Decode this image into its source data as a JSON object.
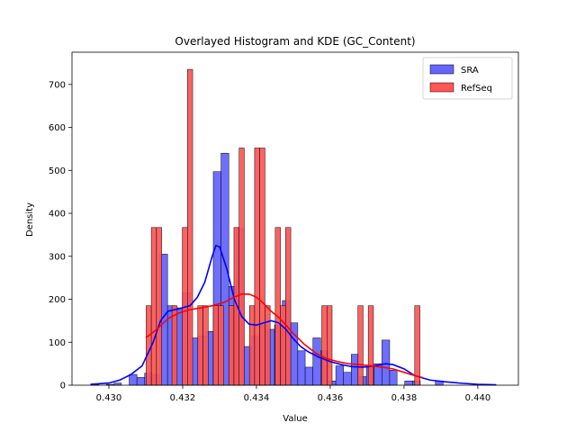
{
  "chart_data": {
    "type": "histogram+kde",
    "title": "Overlayed Histogram and KDE (GC_Content)",
    "xlabel": "Value",
    "ylabel": "Density",
    "xlim": [
      0.429,
      0.4411
    ],
    "ylim": [
      0,
      775
    ],
    "xticks": [
      0.43,
      0.432,
      0.434,
      0.436,
      0.438,
      0.44
    ],
    "xtick_labels": [
      "0.430",
      "0.432",
      "0.434",
      "0.436",
      "0.438",
      "0.440"
    ],
    "yticks": [
      0,
      100,
      200,
      300,
      400,
      500,
      600,
      700
    ],
    "ytick_labels": [
      "0",
      "100",
      "200",
      "300",
      "400",
      "500",
      "600",
      "700"
    ],
    "grid": false,
    "legend_position": "upper-right",
    "series": [
      {
        "name": "SRA",
        "color": "#0000ff",
        "bar_color": "#6666ff",
        "kde_color": "#0000ff",
        "bins": [
          [
            0.42951,
            0.42972,
            2
          ],
          [
            0.42972,
            0.42993,
            0
          ],
          [
            0.42993,
            0.43014,
            2
          ],
          [
            0.43014,
            0.43034,
            5
          ],
          [
            0.43034,
            0.43055,
            0
          ],
          [
            0.43055,
            0.43076,
            25
          ],
          [
            0.43076,
            0.43097,
            18
          ],
          [
            0.43097,
            0.43117,
            28
          ],
          [
            0.43117,
            0.43138,
            25
          ],
          [
            0.43138,
            0.43159,
            305
          ],
          [
            0.43159,
            0.4318,
            185
          ],
          [
            0.4318,
            0.432,
            180
          ],
          [
            0.432,
            0.43221,
            215
          ],
          [
            0.43221,
            0.43242,
            110
          ],
          [
            0.43242,
            0.43263,
            115
          ],
          [
            0.43263,
            0.43283,
            125
          ],
          [
            0.43283,
            0.43304,
            497
          ],
          [
            0.43304,
            0.43325,
            540
          ],
          [
            0.43325,
            0.43346,
            230
          ],
          [
            0.43346,
            0.43366,
            365
          ],
          [
            0.43366,
            0.43387,
            90
          ],
          [
            0.43387,
            0.43408,
            115
          ],
          [
            0.43408,
            0.43429,
            140
          ],
          [
            0.43429,
            0.43449,
            130
          ],
          [
            0.43449,
            0.4347,
            140
          ],
          [
            0.4347,
            0.43491,
            197
          ],
          [
            0.43491,
            0.43512,
            145
          ],
          [
            0.43512,
            0.43532,
            80
          ],
          [
            0.43532,
            0.43553,
            42
          ],
          [
            0.43553,
            0.43574,
            110
          ],
          [
            0.43574,
            0.43595,
            80
          ],
          [
            0.43595,
            0.43615,
            10
          ],
          [
            0.43615,
            0.43636,
            45
          ],
          [
            0.43636,
            0.43657,
            30
          ],
          [
            0.43657,
            0.43678,
            72
          ],
          [
            0.43678,
            0.43698,
            20
          ],
          [
            0.43698,
            0.43719,
            42
          ],
          [
            0.43719,
            0.4374,
            50
          ],
          [
            0.4374,
            0.43761,
            105
          ],
          [
            0.43761,
            0.43781,
            35
          ],
          [
            0.43781,
            0.43802,
            0
          ],
          [
            0.43802,
            0.43823,
            10
          ],
          [
            0.43823,
            0.43844,
            10
          ],
          [
            0.43844,
            0.43864,
            0
          ],
          [
            0.43864,
            0.43885,
            0
          ],
          [
            0.43885,
            0.43906,
            10
          ],
          [
            0.43906,
            0.43927,
            0
          ],
          [
            0.43927,
            0.43947,
            0
          ],
          [
            0.43947,
            0.43968,
            0
          ],
          [
            0.43968,
            0.43989,
            0
          ],
          [
            0.43989,
            0.4401,
            0
          ],
          [
            0.4401,
            0.4403,
            0
          ],
          [
            0.4403,
            0.44051,
            0
          ]
        ],
        "kde": [
          [
            0.4295,
            2
          ],
          [
            0.43,
            5
          ],
          [
            0.4303,
            12
          ],
          [
            0.4306,
            25
          ],
          [
            0.4309,
            45
          ],
          [
            0.4312,
            100
          ],
          [
            0.4314,
            150
          ],
          [
            0.4316,
            172
          ],
          [
            0.4319,
            178
          ],
          [
            0.4322,
            185
          ],
          [
            0.4324,
            205
          ],
          [
            0.4326,
            240
          ],
          [
            0.4328,
            300
          ],
          [
            0.4329,
            325
          ],
          [
            0.433,
            322
          ],
          [
            0.4332,
            270
          ],
          [
            0.4334,
            200
          ],
          [
            0.4336,
            160
          ],
          [
            0.4338,
            142
          ],
          [
            0.434,
            140
          ],
          [
            0.4342,
            145
          ],
          [
            0.4344,
            150
          ],
          [
            0.4346,
            145
          ],
          [
            0.4348,
            130
          ],
          [
            0.435,
            108
          ],
          [
            0.4352,
            90
          ],
          [
            0.4354,
            78
          ],
          [
            0.4357,
            65
          ],
          [
            0.436,
            55
          ],
          [
            0.4363,
            48
          ],
          [
            0.4366,
            43
          ],
          [
            0.4369,
            42
          ],
          [
            0.4372,
            45
          ],
          [
            0.4375,
            50
          ],
          [
            0.4377,
            48
          ],
          [
            0.438,
            38
          ],
          [
            0.4383,
            22
          ],
          [
            0.4387,
            12
          ],
          [
            0.4391,
            8
          ],
          [
            0.4395,
            5
          ],
          [
            0.44,
            2
          ],
          [
            0.4405,
            1
          ]
        ]
      },
      {
        "name": "RefSeq",
        "color": "#ff0000",
        "bar_color": "#ff5555",
        "kde_color": "#ff0000",
        "bins": [
          [
            0.43101,
            0.43124,
            185
          ],
          [
            0.43124,
            0.43147,
            367
          ],
          [
            0.43147,
            0.4317,
            367
          ],
          [
            0.4317,
            0.43193,
            0
          ],
          [
            0.43193,
            0.43216,
            0
          ],
          [
            0.43216,
            0.43239,
            0
          ],
          [
            0.43239,
            0.43262,
            0
          ],
          [
            0.43262,
            0.43285,
            0
          ],
          [
            0.43285,
            0.43308,
            0
          ],
          [
            0.43308,
            0.43331,
            0
          ],
          [
            0.43331,
            0.43354,
            0
          ],
          [
            0.43354,
            0.43377,
            0
          ],
          [
            0.43377,
            0.434,
            0
          ],
          [
            0.434,
            0.43423,
            0
          ],
          [
            0.43423,
            0.43446,
            0
          ],
          [
            0.43446,
            0.43469,
            0
          ],
          [
            0.43469,
            0.43492,
            0
          ],
          [
            0.43492,
            0.43515,
            0
          ],
          [
            0.43515,
            0.43538,
            0
          ],
          [
            0.43538,
            0.43561,
            0
          ],
          [
            0.43561,
            0.43584,
            0
          ],
          [
            0.43584,
            0.43607,
            0
          ],
          [
            0.43607,
            0.4363,
            0
          ],
          [
            0.4363,
            0.43653,
            0
          ],
          [
            0.43653,
            0.43676,
            0
          ],
          [
            0.43676,
            0.43699,
            0
          ],
          [
            0.43699,
            0.43722,
            0
          ],
          [
            0.43722,
            0.43745,
            0
          ],
          [
            0.43745,
            0.43768,
            0
          ],
          [
            0.43768,
            0.43791,
            0
          ],
          [
            0.43791,
            0.43814,
            0
          ],
          [
            0.43814,
            0.43837,
            0
          ],
          [
            0.43837,
            0.4386,
            0
          ]
        ],
        "bars": [
          [
            0.43101,
            0.43115,
            185
          ],
          [
            0.43115,
            0.43129,
            367
          ],
          [
            0.43129,
            0.43143,
            367
          ],
          [
            0.43143,
            0.43157,
            0
          ],
          [
            0.43157,
            0.43171,
            0
          ],
          [
            0.43171,
            0.43185,
            185
          ],
          [
            0.43185,
            0.43199,
            0
          ],
          [
            0.43199,
            0.43213,
            367
          ],
          [
            0.43213,
            0.43227,
            735
          ],
          [
            0.43227,
            0.43241,
            0
          ],
          [
            0.43241,
            0.43255,
            185
          ],
          [
            0.43255,
            0.43269,
            185
          ],
          [
            0.43269,
            0.43283,
            0
          ],
          [
            0.43283,
            0.43297,
            185
          ],
          [
            0.43297,
            0.43311,
            185
          ],
          [
            0.43311,
            0.43325,
            0
          ],
          [
            0.43325,
            0.43339,
            185
          ],
          [
            0.43339,
            0.43353,
            367
          ],
          [
            0.43353,
            0.43367,
            552
          ],
          [
            0.43367,
            0.43381,
            0
          ],
          [
            0.43381,
            0.43395,
            185
          ],
          [
            0.43395,
            0.43409,
            552
          ],
          [
            0.43409,
            0.43423,
            552
          ],
          [
            0.43423,
            0.43437,
            185
          ],
          [
            0.43437,
            0.43451,
            0
          ],
          [
            0.43451,
            0.43465,
            367
          ],
          [
            0.43465,
            0.43479,
            185
          ],
          [
            0.43479,
            0.43493,
            367
          ],
          [
            0.43493,
            0.43507,
            0
          ],
          [
            0.43507,
            0.43521,
            0
          ],
          [
            0.43521,
            0.43535,
            0
          ],
          [
            0.43535,
            0.43549,
            0
          ],
          [
            0.43549,
            0.43563,
            0
          ],
          [
            0.43563,
            0.43577,
            0
          ],
          [
            0.43577,
            0.43591,
            185
          ],
          [
            0.43591,
            0.43605,
            185
          ],
          [
            0.43605,
            0.43619,
            0
          ],
          [
            0.43619,
            0.43633,
            0
          ],
          [
            0.43633,
            0.43647,
            0
          ],
          [
            0.43647,
            0.43661,
            0
          ],
          [
            0.43661,
            0.43675,
            0
          ],
          [
            0.43675,
            0.43689,
            185
          ],
          [
            0.43689,
            0.43703,
            0
          ],
          [
            0.43703,
            0.43717,
            185
          ],
          [
            0.43717,
            0.43731,
            0
          ],
          [
            0.43731,
            0.43745,
            0
          ],
          [
            0.43745,
            0.43759,
            0
          ],
          [
            0.43759,
            0.43773,
            0
          ],
          [
            0.43773,
            0.43787,
            0
          ],
          [
            0.43787,
            0.43801,
            0
          ],
          [
            0.43801,
            0.43815,
            0
          ],
          [
            0.43815,
            0.43829,
            0
          ],
          [
            0.43829,
            0.43843,
            185
          ]
        ],
        "kde": [
          [
            0.431,
            110
          ],
          [
            0.4313,
            130
          ],
          [
            0.4316,
            155
          ],
          [
            0.4319,
            168
          ],
          [
            0.4322,
            176
          ],
          [
            0.4325,
            180
          ],
          [
            0.4328,
            185
          ],
          [
            0.4331,
            192
          ],
          [
            0.4334,
            205
          ],
          [
            0.4336,
            212
          ],
          [
            0.4338,
            212
          ],
          [
            0.434,
            205
          ],
          [
            0.4342,
            190
          ],
          [
            0.4344,
            172
          ],
          [
            0.4346,
            158
          ],
          [
            0.4348,
            140
          ],
          [
            0.435,
            120
          ],
          [
            0.4353,
            95
          ],
          [
            0.4356,
            75
          ],
          [
            0.4359,
            62
          ],
          [
            0.4362,
            55
          ],
          [
            0.4365,
            50
          ],
          [
            0.4368,
            48
          ],
          [
            0.4371,
            45
          ],
          [
            0.4374,
            42
          ],
          [
            0.4377,
            38
          ],
          [
            0.438,
            30
          ],
          [
            0.4383,
            22
          ],
          [
            0.4385,
            18
          ]
        ]
      }
    ]
  }
}
